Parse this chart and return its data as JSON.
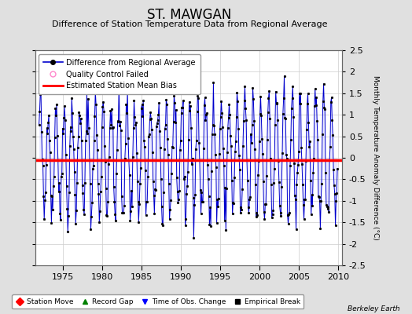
{
  "title": "ST. MAWGAN",
  "subtitle": "Difference of Station Temperature Data from Regional Average",
  "ylabel_right": "Monthly Temperature Anomaly Difference (°C)",
  "ylim": [
    -2.5,
    2.5
  ],
  "xlim": [
    1971.5,
    2010.5
  ],
  "xticks": [
    1975,
    1980,
    1985,
    1990,
    1995,
    2000,
    2005,
    2010
  ],
  "yticks": [
    -2.5,
    -2,
    -1.5,
    -1,
    -0.5,
    0,
    0.5,
    1,
    1.5,
    2,
    2.5
  ],
  "bias_value": -0.05,
  "fig_bg_color": "#e0e0e0",
  "plot_bg_color": "#ffffff",
  "line_color": "#0000cc",
  "fill_color": "#aaaaff",
  "bias_color": "#ff0000",
  "marker_color": "#000000",
  "title_fontsize": 12,
  "subtitle_fontsize": 8,
  "tick_fontsize": 8,
  "watermark": "Berkeley Earth",
  "seed": 42,
  "n_years": 38,
  "start_year": 1972,
  "months_per_year": 12,
  "legend1_fontsize": 7,
  "legend2_fontsize": 6.5
}
